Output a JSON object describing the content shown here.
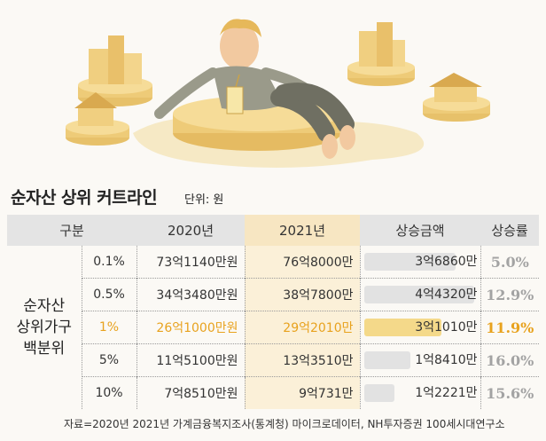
{
  "title": "순자산 상위 커트라인",
  "unit": "단위: 원",
  "headers": {
    "group": "구분",
    "y2020": "2020년",
    "y2021": "2021년",
    "increase": "상승금액",
    "rate": "상승률"
  },
  "group_label_lines": [
    "순자산",
    "상위가구",
    "백분위"
  ],
  "rows": [
    {
      "pct": "0.1%",
      "y2020": "73억1140만원",
      "y2021": "76억8000만",
      "increase": "3억6860만",
      "increase_value": 36860,
      "rate": "5.0%",
      "highlight": false
    },
    {
      "pct": "0.5%",
      "y2020": "34억3480만원",
      "y2021": "38억7800만",
      "increase": "4억4320만",
      "increase_value": 44320,
      "rate": "12.9%",
      "highlight": false
    },
    {
      "pct": "1%",
      "y2020": "26억1000만원",
      "y2021": "29억2010만",
      "increase": "3억1010만",
      "increase_value": 31010,
      "rate": "11.9%",
      "highlight": true
    },
    {
      "pct": "5%",
      "y2020": "11억5100만원",
      "y2021": "13억3510만",
      "increase": "1억8410만",
      "increase_value": 18410,
      "rate": "16.0%",
      "highlight": false
    },
    {
      "pct": "10%",
      "y2020": "7억8510만원",
      "y2021": "9억731만",
      "increase": "1억2221만",
      "increase_value": 12221,
      "rate": "15.6%",
      "highlight": false
    }
  ],
  "source": "자료=2020년 2021년 가계금융복지조사(통계청) 마이크로데이터, NH투자증권 100세시대연구소",
  "colors": {
    "highlight": "#e8a21e",
    "header_hl": "#f7e6c2",
    "bar_gray": "#e2e2e2",
    "bar_hl": "#f4d98a"
  }
}
